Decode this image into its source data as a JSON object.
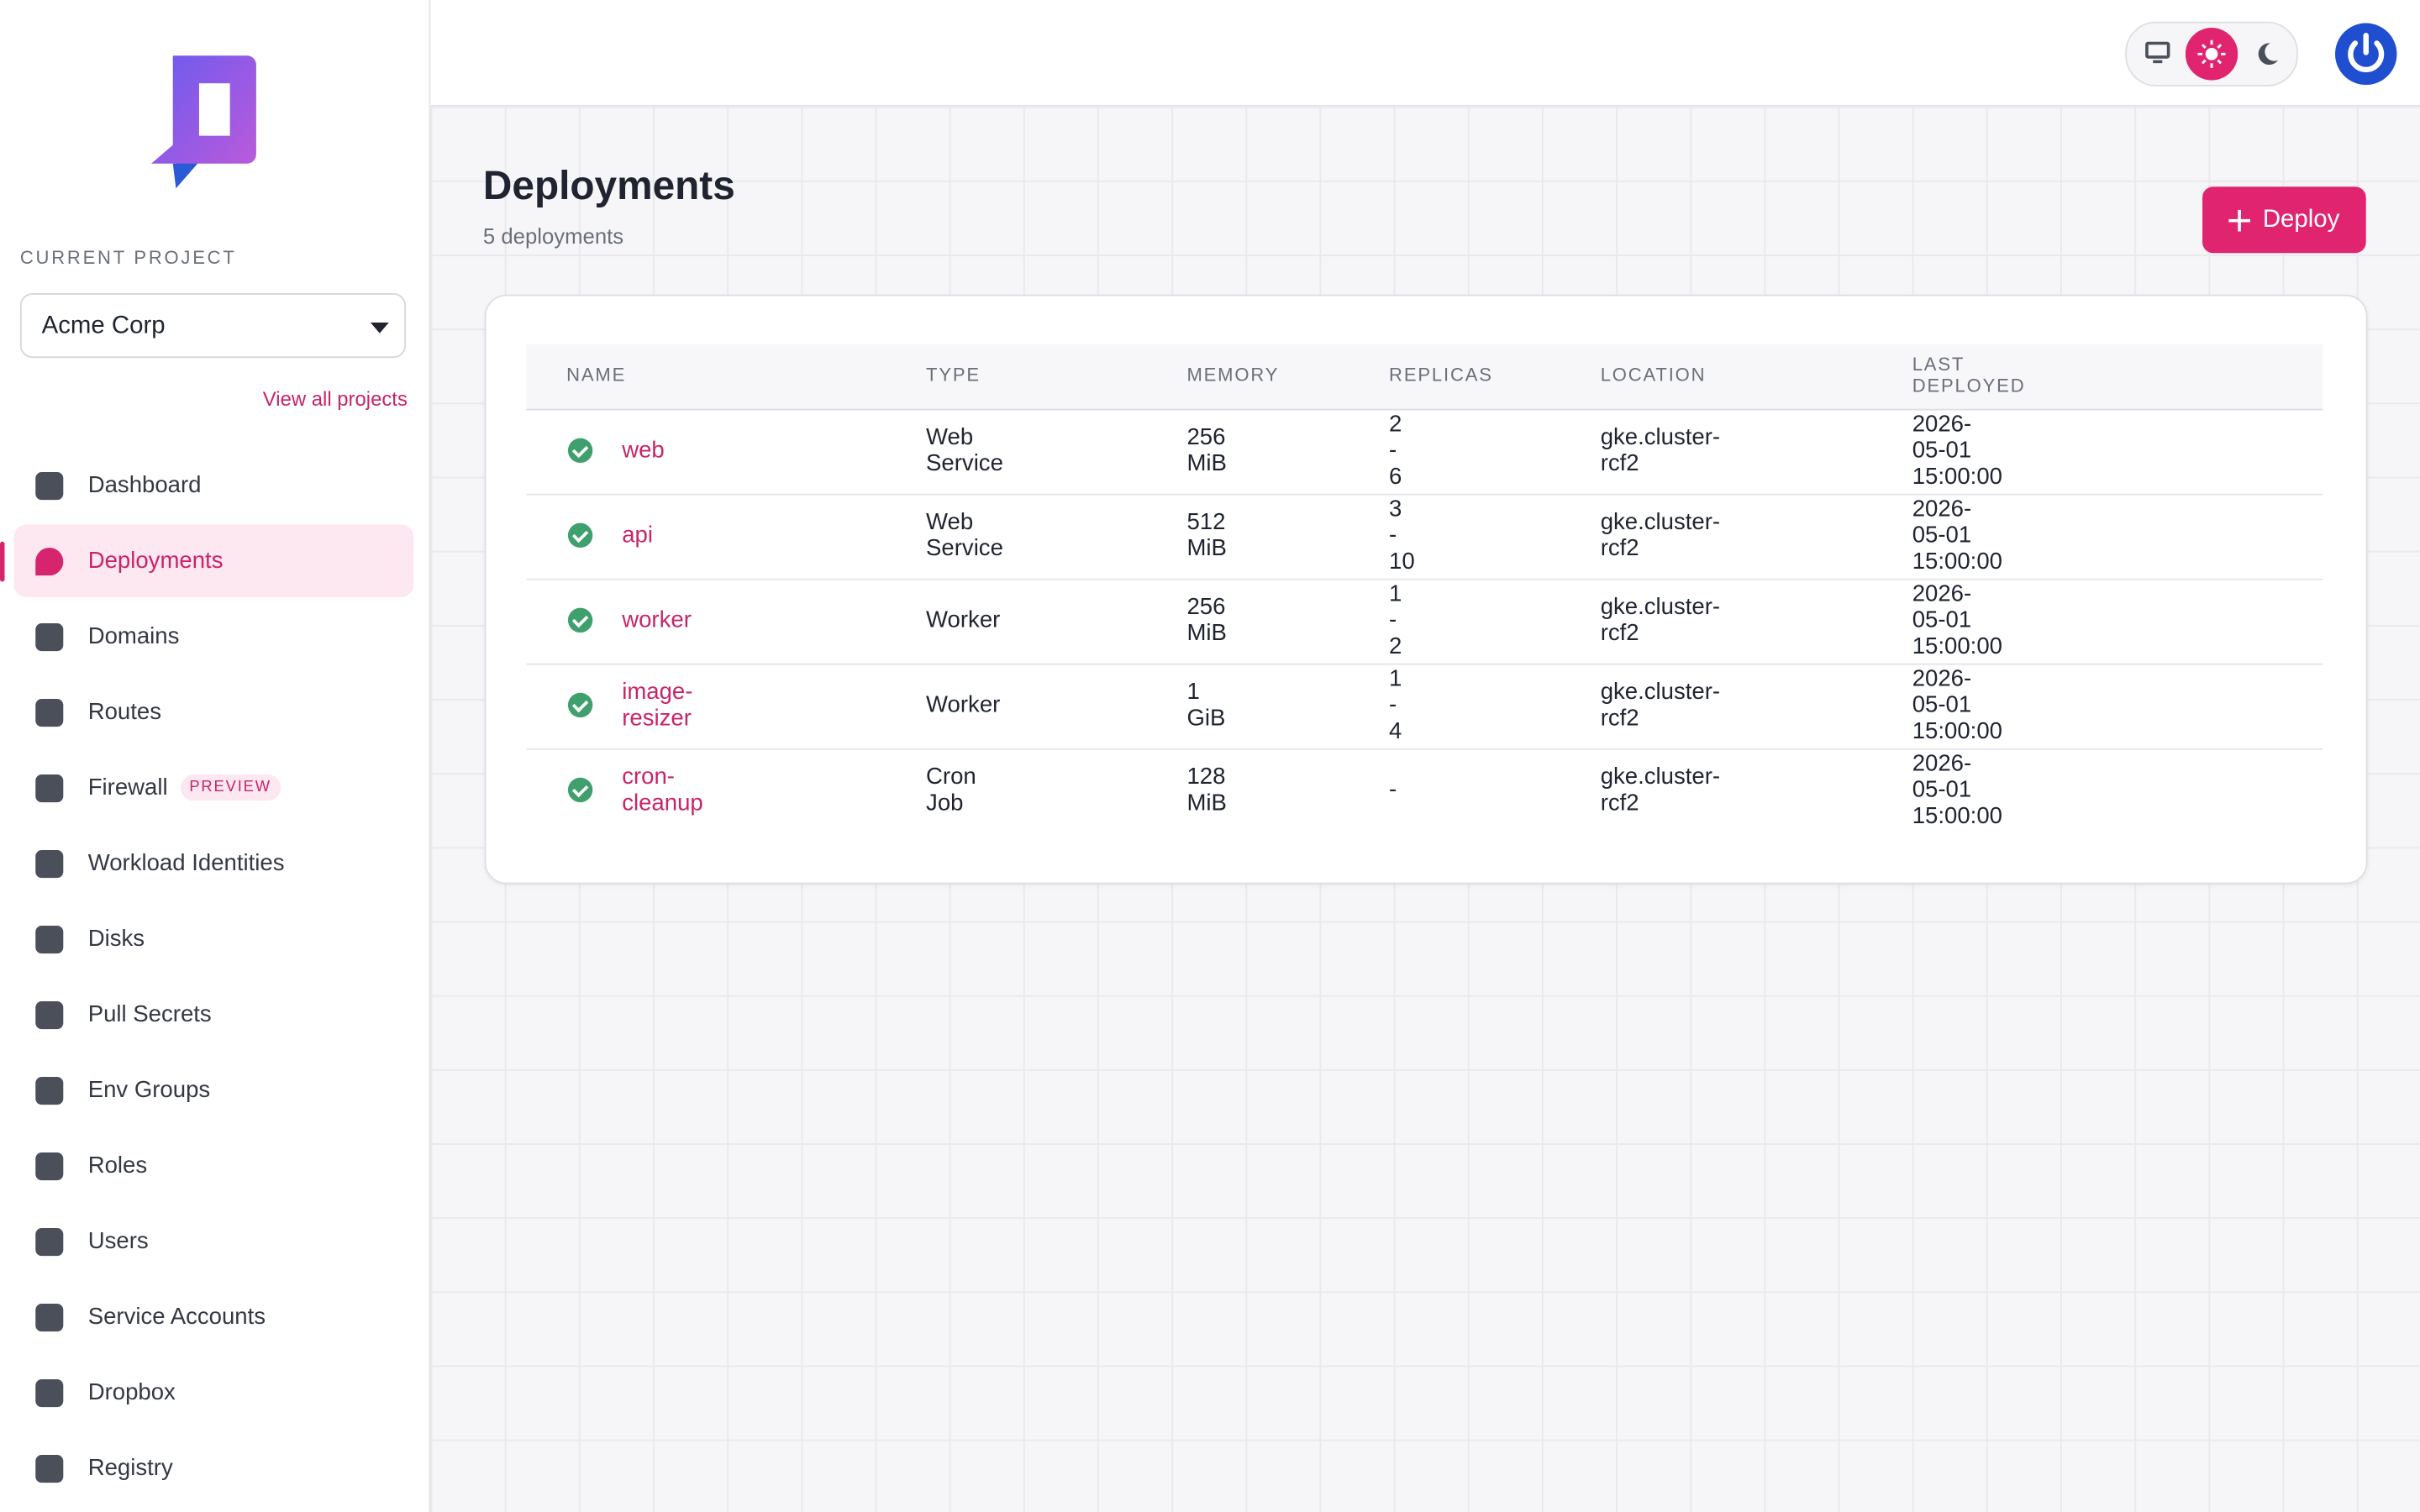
{
  "sidebar": {
    "project_label": "CURRENT PROJECT",
    "project_name": "Acme Corp",
    "view_all": "View all projects",
    "nav": [
      {
        "label": "Dashboard"
      },
      {
        "label": "Deployments",
        "active": true
      },
      {
        "label": "Domains"
      },
      {
        "label": "Routes"
      },
      {
        "label": "Firewall",
        "badge": "PREVIEW"
      },
      {
        "label": "Workload Identities"
      },
      {
        "label": "Disks"
      },
      {
        "label": "Pull Secrets"
      },
      {
        "label": "Env Groups"
      },
      {
        "label": "Roles"
      },
      {
        "label": "Users"
      },
      {
        "label": "Service Accounts"
      },
      {
        "label": "Dropbox"
      },
      {
        "label": "Registry"
      }
    ]
  },
  "header": {
    "title": "Deployments",
    "subtitle": "5 deployments",
    "button": "Deploy"
  },
  "table": {
    "columns": [
      "NAME",
      "TYPE",
      "MEMORY",
      "REPLICAS",
      "LOCATION",
      "LAST DEPLOYED"
    ],
    "rows": [
      [
        "web",
        "Web Service",
        "256 MiB",
        "2 - 6",
        "gke.cluster-rcf2",
        "2026-05-01 15:00:00"
      ],
      [
        "api",
        "Web Service",
        "512 MiB",
        "3 - 10",
        "gke.cluster-rcf2",
        "2026-05-01 15:00:00"
      ],
      [
        "worker",
        "Worker",
        "256 MiB",
        "1 - 2",
        "gke.cluster-rcf2",
        "2026-05-01 15:00:00"
      ],
      [
        "image-resizer",
        "Worker",
        "1 GiB",
        "1 - 4",
        "gke.cluster-rcf2",
        "2026-05-01 15:00:00"
      ],
      [
        "cron-cleanup",
        "Cron Job",
        "128 MiB",
        "-",
        "gke.cluster-rcf2",
        "2026-05-01 15:00:00"
      ]
    ]
  }
}
